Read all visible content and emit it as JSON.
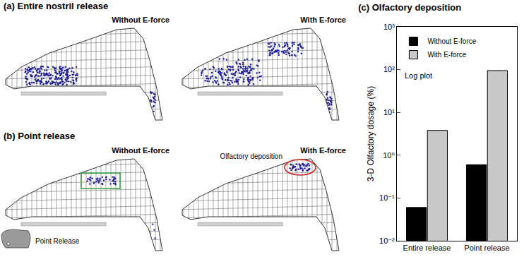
{
  "panels": {
    "a": {
      "title": "(a) Entire nostril release",
      "left_label": "Without E-force",
      "right_label": "With E-force"
    },
    "b": {
      "title": "(b) Point release",
      "left_label": "Without E-force",
      "right_label": "With E-force",
      "highlight_label": "Olfactory deposition",
      "inset_label": "Point Release"
    }
  },
  "chart_data": {
    "type": "bar",
    "title": "(c) Olfactory deposition",
    "ylabel": "3-D Olfactory dosage (%)",
    "annotations": [
      "Log plot"
    ],
    "categories": [
      "Entire release",
      "Point release"
    ],
    "series": [
      {
        "name": "Without E-force",
        "color": "#000000",
        "values": [
          0.06,
          0.6
        ]
      },
      {
        "name": "With E-force",
        "color": "#c8c8c8",
        "values": [
          3.8,
          95
        ]
      }
    ],
    "log": "y",
    "ylim": [
      0.01,
      1000
    ],
    "yticks": [
      {
        "value": 0.01,
        "label": "10⁻²"
      },
      {
        "value": 0.1,
        "label": "10⁻¹"
      },
      {
        "value": 1,
        "label": "10⁰"
      },
      {
        "value": 10,
        "label": "10¹"
      },
      {
        "value": 100,
        "label": "10²"
      },
      {
        "value": 1000,
        "label": "10³"
      }
    ],
    "grid": false,
    "legend": "upper left"
  }
}
